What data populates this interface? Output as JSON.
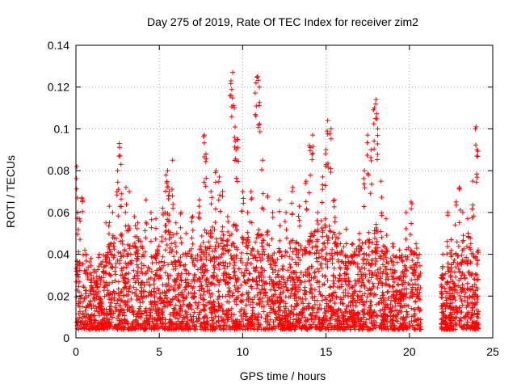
{
  "chart_data": {
    "type": "scatter",
    "title": "Day 275 of 2019, Rate Of TEC Index for receiver zim2",
    "xlabel": "GPS time / hours",
    "ylabel": "ROTI / TECUs",
    "xlim": [
      0,
      25
    ],
    "ylim": [
      0,
      0.14
    ],
    "x_ticks": [
      0,
      5,
      10,
      15,
      20,
      25
    ],
    "y_ticks": [
      0,
      0.02,
      0.04,
      0.06,
      0.08,
      0.1,
      0.12,
      0.14
    ],
    "x_tick_labels": [
      "0",
      "5",
      "10",
      "15",
      "20",
      "25"
    ],
    "y_tick_labels": [
      "0",
      "0.02",
      "0.04",
      "0.06",
      "0.08",
      "0.1",
      "0.12",
      "0.14"
    ],
    "grid": true,
    "marker": "+",
    "color": "#ff0000",
    "data_gap_hours": [
      20.7,
      21.9
    ],
    "series": [
      {
        "values": [
          [
            0.05,
            0.082
          ],
          [
            0.1,
            0.06
          ],
          [
            0.2,
            0.057
          ],
          [
            0.35,
            0.067
          ],
          [
            0.6,
            0.04
          ],
          [
            0.9,
            0.038
          ],
          [
            1.4,
            0.04
          ],
          [
            1.8,
            0.055
          ],
          [
            2.0,
            0.063
          ],
          [
            2.2,
            0.06
          ],
          [
            2.5,
            0.08
          ],
          [
            2.6,
            0.093
          ],
          [
            2.7,
            0.083
          ],
          [
            3.0,
            0.072
          ],
          [
            3.2,
            0.07
          ],
          [
            3.5,
            0.058
          ],
          [
            3.7,
            0.055
          ],
          [
            4.2,
            0.066
          ],
          [
            4.5,
            0.06
          ],
          [
            4.8,
            0.057
          ],
          [
            5.2,
            0.062
          ],
          [
            5.4,
            0.078
          ],
          [
            5.5,
            0.08
          ],
          [
            5.6,
            0.07
          ],
          [
            5.8,
            0.085
          ],
          [
            6.0,
            0.055
          ],
          [
            6.3,
            0.06
          ],
          [
            6.6,
            0.05
          ],
          [
            7.0,
            0.058
          ],
          [
            7.4,
            0.066
          ],
          [
            7.7,
            0.097
          ],
          [
            7.8,
            0.088
          ],
          [
            8.1,
            0.07
          ],
          [
            8.4,
            0.08
          ],
          [
            8.6,
            0.077
          ],
          [
            8.8,
            0.07
          ],
          [
            9.1,
            0.058
          ],
          [
            9.3,
            0.123
          ],
          [
            9.4,
            0.127
          ],
          [
            9.5,
            0.11
          ],
          [
            9.6,
            0.09
          ],
          [
            9.7,
            0.095
          ],
          [
            10.0,
            0.07
          ],
          [
            10.3,
            0.06
          ],
          [
            10.5,
            0.07
          ],
          [
            10.8,
            0.122
          ],
          [
            10.9,
            0.125
          ],
          [
            11.0,
            0.12
          ],
          [
            11.2,
            0.085
          ],
          [
            11.5,
            0.068
          ],
          [
            11.8,
            0.06
          ],
          [
            12.2,
            0.066
          ],
          [
            12.6,
            0.06
          ],
          [
            13.0,
            0.072
          ],
          [
            13.4,
            0.063
          ],
          [
            13.8,
            0.075
          ],
          [
            14.0,
            0.092
          ],
          [
            14.2,
            0.097
          ],
          [
            14.5,
            0.06
          ],
          [
            14.8,
            0.077
          ],
          [
            15.0,
            0.09
          ],
          [
            15.1,
            0.104
          ],
          [
            15.3,
            0.1
          ],
          [
            15.5,
            0.066
          ],
          [
            15.8,
            0.05
          ],
          [
            16.2,
            0.052
          ],
          [
            16.6,
            0.045
          ],
          [
            17.0,
            0.05
          ],
          [
            17.3,
            0.08
          ],
          [
            17.5,
            0.097
          ],
          [
            17.7,
            0.09
          ],
          [
            17.9,
            0.11
          ],
          [
            18.0,
            0.114
          ],
          [
            18.1,
            0.1
          ],
          [
            18.3,
            0.075
          ],
          [
            18.6,
            0.057
          ],
          [
            19.0,
            0.045
          ],
          [
            19.4,
            0.042
          ],
          [
            19.8,
            0.06
          ],
          [
            20.1,
            0.065
          ],
          [
            20.4,
            0.045
          ],
          [
            20.6,
            0.04
          ],
          [
            22.0,
            0.04
          ],
          [
            22.3,
            0.06
          ],
          [
            22.5,
            0.047
          ],
          [
            22.8,
            0.065
          ],
          [
            23.0,
            0.072
          ],
          [
            23.2,
            0.06
          ],
          [
            23.5,
            0.057
          ],
          [
            23.8,
            0.075
          ],
          [
            24.0,
            0.101
          ],
          [
            24.05,
            0.09
          ]
        ],
        "band_upper": [
          [
            0,
            0.035
          ],
          [
            0.5,
            0.045
          ],
          [
            1.0,
            0.032
          ],
          [
            1.5,
            0.036
          ],
          [
            2.0,
            0.048
          ],
          [
            2.5,
            0.055
          ],
          [
            3.0,
            0.045
          ],
          [
            3.5,
            0.05
          ],
          [
            4.0,
            0.045
          ],
          [
            4.5,
            0.038
          ],
          [
            5.0,
            0.045
          ],
          [
            5.5,
            0.06
          ],
          [
            6.0,
            0.045
          ],
          [
            6.5,
            0.04
          ],
          [
            7.0,
            0.045
          ],
          [
            7.5,
            0.05
          ],
          [
            8.0,
            0.055
          ],
          [
            8.5,
            0.05
          ],
          [
            9.0,
            0.045
          ],
          [
            9.5,
            0.055
          ],
          [
            10.0,
            0.05
          ],
          [
            10.5,
            0.045
          ],
          [
            11.0,
            0.055
          ],
          [
            11.5,
            0.045
          ],
          [
            12.0,
            0.045
          ],
          [
            12.5,
            0.04
          ],
          [
            13.0,
            0.05
          ],
          [
            13.5,
            0.045
          ],
          [
            14.0,
            0.05
          ],
          [
            14.5,
            0.055
          ],
          [
            15.0,
            0.06
          ],
          [
            15.5,
            0.05
          ],
          [
            16.0,
            0.045
          ],
          [
            16.5,
            0.04
          ],
          [
            17.0,
            0.045
          ],
          [
            17.5,
            0.05
          ],
          [
            18.0,
            0.055
          ],
          [
            18.5,
            0.045
          ],
          [
            19.0,
            0.04
          ],
          [
            19.5,
            0.04
          ],
          [
            20.0,
            0.045
          ],
          [
            20.6,
            0.04
          ],
          [
            22.0,
            0.03
          ],
          [
            22.5,
            0.04
          ],
          [
            23.0,
            0.045
          ],
          [
            23.5,
            0.05
          ],
          [
            24.0,
            0.045
          ]
        ],
        "band_lower": 0.004
      }
    ]
  }
}
